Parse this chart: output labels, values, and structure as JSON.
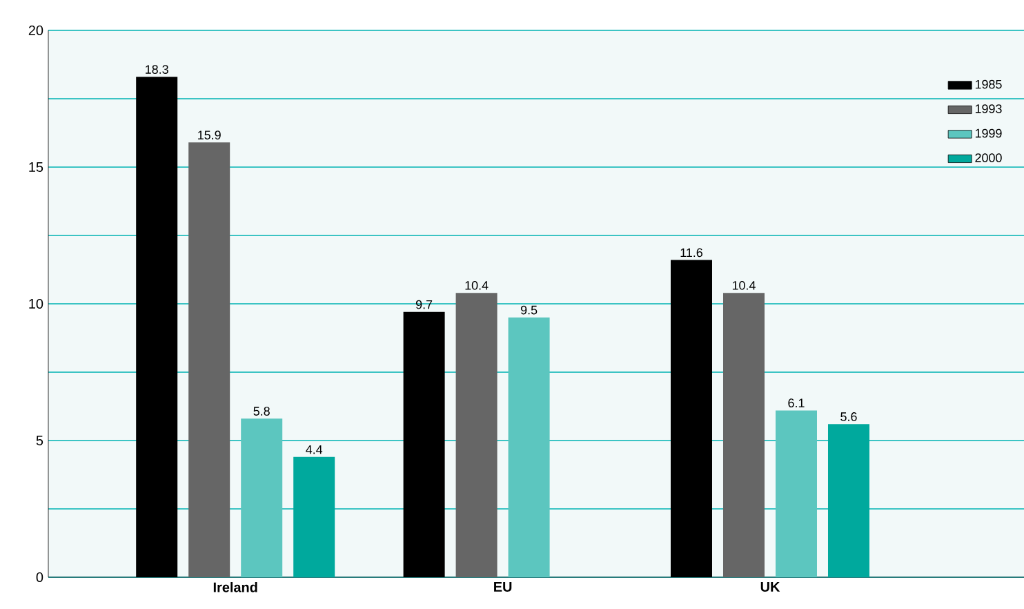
{
  "chart_data": {
    "type": "bar",
    "categories": [
      "Ireland",
      "EU",
      "UK"
    ],
    "series": [
      {
        "name": "1985",
        "color": "#000000",
        "values": [
          18.3,
          9.7,
          11.6
        ]
      },
      {
        "name": "1993",
        "color": "#666666",
        "values": [
          15.9,
          10.4,
          10.4
        ]
      },
      {
        "name": "1999",
        "color": "#5cc6bf",
        "values": [
          5.8,
          9.5,
          6.1
        ]
      },
      {
        "name": "2000",
        "color": "#00a99d",
        "values": [
          4.4,
          null,
          5.6
        ]
      }
    ],
    "ylim": [
      0,
      20
    ],
    "yticks": [
      0,
      {
        "value": 2.5,
        "label": null
      },
      5,
      {
        "value": 7.5,
        "label": null
      },
      10,
      {
        "value": 12.5,
        "label": null
      },
      15,
      {
        "value": 17.5,
        "label": null
      },
      20
    ],
    "grid": "y",
    "legend": "top right",
    "data_labels": true
  }
}
